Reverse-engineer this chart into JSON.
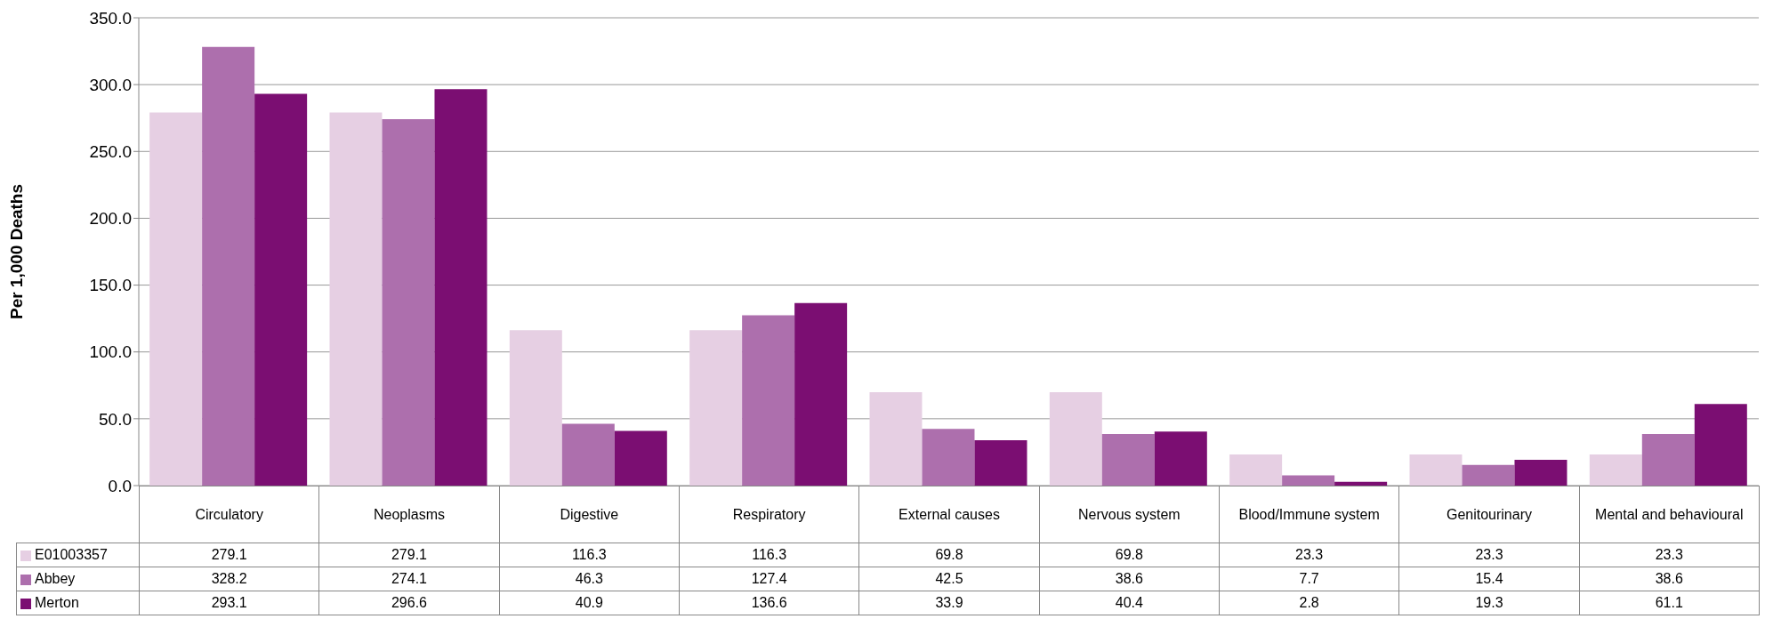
{
  "chart_data": {
    "type": "bar",
    "ylabel": "Per 1,000 Deaths",
    "categories": [
      "Circulatory",
      "Neoplasms",
      "Digestive",
      "Respiratory",
      "External causes",
      "Nervous system",
      "Blood/Immune system",
      "Genitourinary",
      "Mental and behavioural"
    ],
    "series": [
      {
        "name": "E01003357",
        "color": "#e6cfe3",
        "values": [
          279.1,
          279.1,
          116.3,
          116.3,
          69.8,
          69.8,
          23.3,
          23.3,
          23.3
        ]
      },
      {
        "name": "Abbey",
        "color": "#ad6fad",
        "values": [
          328.2,
          274.1,
          46.3,
          127.4,
          42.5,
          38.6,
          7.7,
          15.4,
          38.6
        ]
      },
      {
        "name": "Merton",
        "color": "#7b0e72",
        "values": [
          293.1,
          296.6,
          40.9,
          136.6,
          33.9,
          40.4,
          2.8,
          19.3,
          61.1
        ]
      }
    ],
    "ylim": [
      0,
      350
    ],
    "yticks": [
      {
        "value": 0,
        "label": "0.0"
      },
      {
        "value": 50,
        "label": "50.0"
      },
      {
        "value": 100,
        "label": "100.0"
      },
      {
        "value": 150,
        "label": "150.0"
      },
      {
        "value": 200,
        "label": "200.0"
      },
      {
        "value": 250,
        "label": "250.0"
      },
      {
        "value": 300,
        "label": "300.0"
      },
      {
        "value": 350,
        "label": "350.0"
      }
    ],
    "grid": "y",
    "legend": "bottom",
    "data_labels": true
  }
}
